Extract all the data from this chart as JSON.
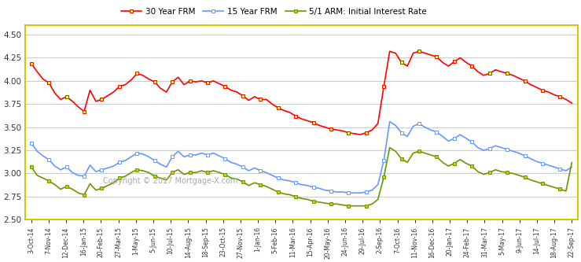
{
  "background_color": "#ffffff",
  "border_color": "#cccc00",
  "grid_color": "#cccccc",
  "copyright_text": "Copyright © 2017 Mortgage-X.com",
  "ylim": [
    2.5,
    4.6
  ],
  "yticks": [
    2.5,
    2.75,
    3.0,
    3.25,
    3.5,
    3.75,
    4.0,
    4.25,
    4.5
  ],
  "series": {
    "frm30": {
      "label": "30 Year FRM",
      "color": "#ff0000",
      "marker_face": "#ffff00",
      "marker_edge": "#ff0000",
      "marker": "s",
      "linewidth": 1.2
    },
    "frm15": {
      "label": "15 Year FRM",
      "color": "#6699ff",
      "marker_face": "#ffffff",
      "marker_edge": "#6699ff",
      "marker": "s",
      "linewidth": 1.2
    },
    "arm51": {
      "label": "5/1 ARM: Initial Interest Rate",
      "color": "#669900",
      "marker_face": "#cccc00",
      "marker_edge": "#669900",
      "marker": "s",
      "linewidth": 1.2
    }
  },
  "xtick_labels": [
    "3-Oct-14",
    "7-Nov-14",
    "12-Dec-14",
    "16-Jan-15",
    "20-Feb-15",
    "27-Mar-15",
    "1-May-15",
    "5-Jun-15",
    "10-Jul-15",
    "14-Aug-15",
    "18-Sep-15",
    "23-Oct-15",
    "27-Nov-15",
    "1-Jan-16",
    "5-Feb-16",
    "11-Mar-16",
    "15-Apr-16",
    "20-May-16",
    "24-Jun-16",
    "29-Jul-16",
    "2-Sep-16",
    "7-Oct-16",
    "11-Nov-16",
    "16-Dec-16",
    "20-Jan-17",
    "24-Feb-17",
    "31-Mar-17",
    "5-May-17",
    "9-Jun-17",
    "14-Jul-17",
    "18-Aug-17",
    "22-Sep-17"
  ],
  "frm30_values": [
    4.19,
    4.1,
    4.02,
    3.98,
    3.87,
    3.8,
    3.83,
    3.78,
    3.72,
    3.67,
    3.9,
    3.78,
    3.8,
    3.84,
    3.88,
    3.94,
    3.96,
    4.01,
    4.08,
    4.06,
    4.02,
    3.99,
    3.92,
    3.88,
    3.99,
    4.04,
    3.96,
    4.0,
    3.99,
    4.0,
    3.98,
    4.0,
    3.97,
    3.94,
    3.9,
    3.88,
    3.84,
    3.79,
    3.83,
    3.8,
    3.8,
    3.75,
    3.71,
    3.68,
    3.66,
    3.62,
    3.59,
    3.57,
    3.55,
    3.52,
    3.5,
    3.48,
    3.47,
    3.46,
    3.44,
    3.43,
    3.42,
    3.44,
    3.47,
    3.54,
    3.94,
    4.32,
    4.3,
    4.2,
    4.16,
    4.3,
    4.32,
    4.3,
    4.28,
    4.26,
    4.2,
    4.16,
    4.21,
    4.25,
    4.2,
    4.16,
    4.1,
    4.06,
    4.08,
    4.12,
    4.1,
    4.08,
    4.06,
    4.03,
    4.0,
    3.96,
    3.93,
    3.9,
    3.88,
    3.85,
    3.83,
    3.8,
    3.76
  ],
  "frm15_values": [
    3.33,
    3.24,
    3.19,
    3.15,
    3.08,
    3.04,
    3.07,
    3.01,
    2.98,
    2.97,
    3.09,
    3.02,
    3.04,
    3.06,
    3.08,
    3.12,
    3.14,
    3.18,
    3.22,
    3.21,
    3.18,
    3.14,
    3.1,
    3.07,
    3.18,
    3.24,
    3.18,
    3.2,
    3.2,
    3.22,
    3.2,
    3.22,
    3.19,
    3.16,
    3.12,
    3.1,
    3.07,
    3.03,
    3.06,
    3.03,
    3.01,
    2.98,
    2.95,
    2.93,
    2.92,
    2.9,
    2.88,
    2.87,
    2.85,
    2.84,
    2.82,
    2.81,
    2.8,
    2.8,
    2.79,
    2.79,
    2.79,
    2.8,
    2.82,
    2.88,
    3.14,
    3.56,
    3.52,
    3.44,
    3.4,
    3.51,
    3.54,
    3.5,
    3.47,
    3.45,
    3.4,
    3.35,
    3.38,
    3.42,
    3.38,
    3.34,
    3.28,
    3.25,
    3.27,
    3.3,
    3.28,
    3.26,
    3.24,
    3.22,
    3.19,
    3.16,
    3.13,
    3.11,
    3.09,
    3.07,
    3.05,
    3.03,
    3.07
  ],
  "arm51_values": [
    3.07,
    2.98,
    2.95,
    2.92,
    2.88,
    2.83,
    2.86,
    2.83,
    2.79,
    2.77,
    2.89,
    2.82,
    2.84,
    2.87,
    2.9,
    2.95,
    2.97,
    3.01,
    3.04,
    3.03,
    3.01,
    2.97,
    2.95,
    2.93,
    3.01,
    3.04,
    2.99,
    3.01,
    3.01,
    3.03,
    3.01,
    3.03,
    3.01,
    2.99,
    2.95,
    2.94,
    2.91,
    2.87,
    2.9,
    2.88,
    2.86,
    2.83,
    2.8,
    2.78,
    2.77,
    2.75,
    2.73,
    2.72,
    2.7,
    2.69,
    2.68,
    2.67,
    2.67,
    2.66,
    2.65,
    2.65,
    2.65,
    2.65,
    2.67,
    2.72,
    2.96,
    3.28,
    3.24,
    3.16,
    3.12,
    3.22,
    3.24,
    3.22,
    3.2,
    3.18,
    3.12,
    3.08,
    3.11,
    3.15,
    3.11,
    3.08,
    3.02,
    2.99,
    3.01,
    3.04,
    3.02,
    3.01,
    3.0,
    2.98,
    2.96,
    2.93,
    2.91,
    2.89,
    2.87,
    2.85,
    2.83,
    2.81,
    3.12
  ]
}
